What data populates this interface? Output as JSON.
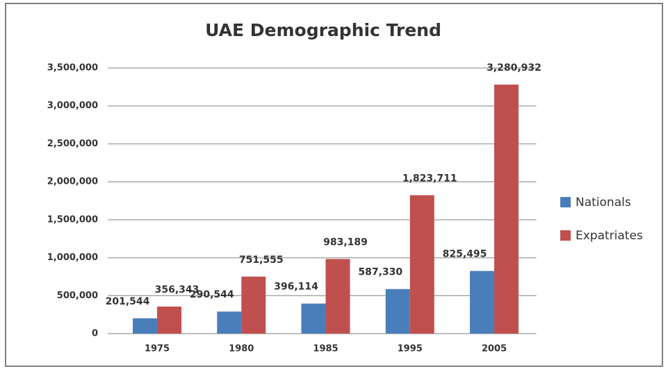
{
  "chart_data": {
    "type": "bar",
    "title": "UAE Demographic Trend",
    "categories": [
      "1975",
      "1980",
      "1985",
      "1995",
      "2005"
    ],
    "series": [
      {
        "name": "Nationals",
        "color": "#4a7ebb",
        "values": [
          201544,
          290544,
          396114,
          587330,
          825495
        ],
        "value_labels": [
          "201,544",
          "290,544",
          "396,114",
          "587,330",
          "825,495"
        ]
      },
      {
        "name": "Expatriates",
        "color": "#c0504d",
        "values": [
          356343,
          751555,
          983189,
          1823711,
          3280932
        ],
        "value_labels": [
          "356,343",
          "751,555",
          "983,189",
          "1,823,711",
          "3,280,932"
        ]
      }
    ],
    "ylim": [
      0,
      3500000
    ],
    "yticks": [
      0,
      {
        "value": 500000,
        "label": "500,000"
      },
      {
        "value": 1000000,
        "label": "1,000,000"
      },
      {
        "value": 1500000,
        "label": "1,500,000"
      },
      {
        "value": 2000000,
        "label": "2,000,000"
      },
      {
        "value": 2500000,
        "label": "2,500,000"
      },
      {
        "value": 3000000,
        "label": "3,000,000"
      },
      {
        "value": 3500000,
        "label": "3,500,000"
      }
    ],
    "grid": true,
    "legend": "right"
  }
}
